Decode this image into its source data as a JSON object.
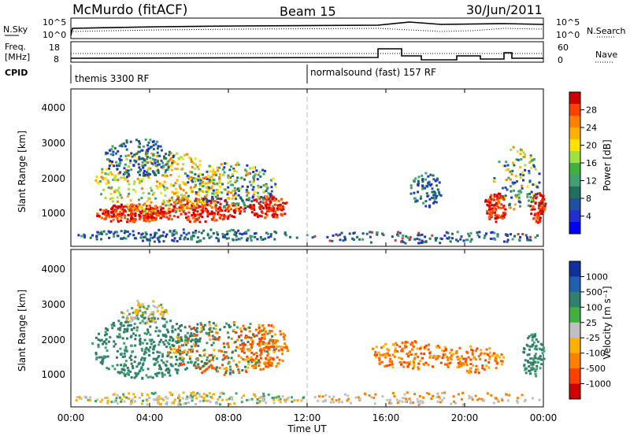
{
  "header": {
    "station": "McMurdo (fitACF)",
    "beam": "Beam 15",
    "date": "30/Jun/2011"
  },
  "status_panel": {
    "left_label_1": "N.Sky",
    "left_ticks_1": [
      "10^5",
      "10^0"
    ],
    "right_label_1": "N.Search",
    "right_ticks_1": [
      "10^5",
      "10^0"
    ],
    "left_label_2a": "Freq.",
    "left_label_2b": "[MHz]",
    "left_ticks_2": [
      "18",
      "8"
    ],
    "right_label_2": "Nave",
    "right_ticks_2": [
      "60",
      "0"
    ],
    "cpid_label": "CPID",
    "cpid_1": "themis 3300 RF",
    "cpid_2": "normalsound (fast) 157 RF"
  },
  "chart_data": [
    {
      "type": "heatmap",
      "title": "",
      "ylabel": "Slant Range [km]",
      "xlabel": "",
      "x_range": [
        "00:00",
        "00:00"
      ],
      "ylim": [
        180,
        4600
      ],
      "yticks": [
        "4000",
        "3000",
        "2000",
        "1000"
      ],
      "colorbar_label": "Power [dB]",
      "colorbar_ticks": [
        "28",
        "24",
        "20",
        "16",
        "12",
        "8",
        "4"
      ],
      "colorbar_colors": [
        "#d00000",
        "#ff4000",
        "#ff8000",
        "#ffb000",
        "#ffe000",
        "#a0e040",
        "#40b040",
        "#40a070",
        "#207060",
        "#2050a0",
        "#2030d0",
        "#0000ff"
      ]
    },
    {
      "type": "heatmap",
      "title": "",
      "ylabel": "Slant Range [km]",
      "xlabel": "Time UT",
      "xticks": [
        "00:00",
        "04:00",
        "08:00",
        "12:00",
        "16:00",
        "20:00",
        "00:00"
      ],
      "ylim": [
        180,
        4600
      ],
      "yticks": [
        "4000",
        "3000",
        "2000",
        "1000"
      ],
      "colorbar_label": "Velocity [m s⁻¹]",
      "colorbar_ticks": [
        "1000",
        "500",
        "100",
        "25",
        "-25",
        "-100",
        "-500",
        "-1000"
      ],
      "colorbar_colors": [
        "#1030a0",
        "#2060b0",
        "#308070",
        "#40b040",
        "#c0c0c0",
        "#ffb000",
        "#ff8000",
        "#ff4000",
        "#d00000"
      ]
    }
  ]
}
